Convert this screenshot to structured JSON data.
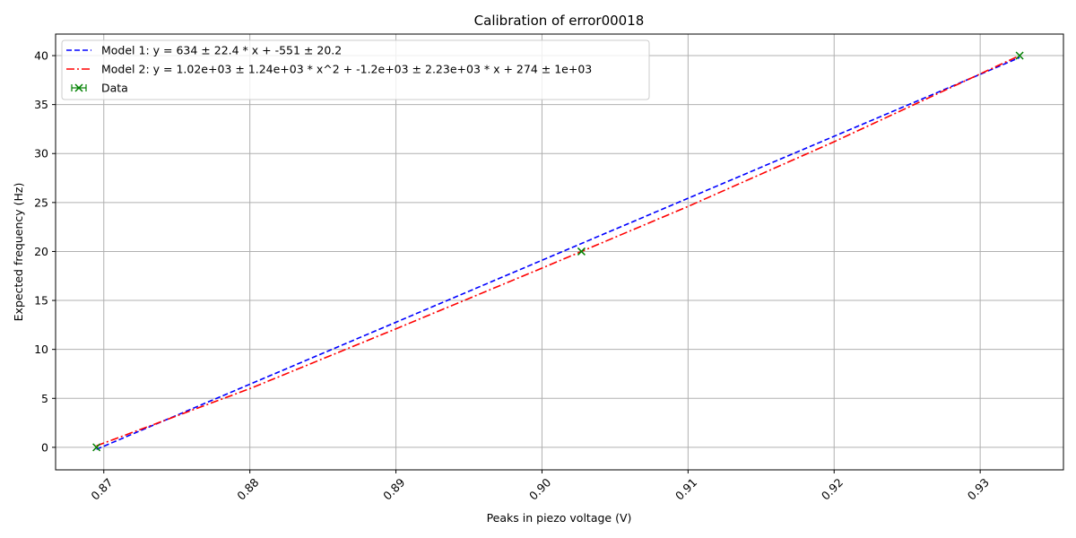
{
  "chart_data": {
    "type": "line",
    "title": "Calibration of error00018",
    "xlabel": "Peaks in piezo voltage (V)",
    "ylabel": "Expected frequency (Hz)",
    "xlim": [
      0.8667,
      0.9357
    ],
    "ylim": [
      -2.3,
      42.2
    ],
    "x_ticks": [
      0.87,
      0.88,
      0.89,
      0.9,
      0.91,
      0.92,
      0.93
    ],
    "x_tick_labels": [
      "0.87",
      "0.88",
      "0.89",
      "0.90",
      "0.91",
      "0.92",
      "0.93"
    ],
    "y_ticks": [
      0,
      5,
      10,
      15,
      20,
      25,
      30,
      35,
      40
    ],
    "y_tick_labels": [
      "0",
      "5",
      "10",
      "15",
      "20",
      "25",
      "30",
      "35",
      "40"
    ],
    "grid": true,
    "legend_position": "top-left",
    "series": [
      {
        "name": "Model 1: y = 634 ± 22.4 * x + -551 ± 20.2",
        "kind": "line",
        "style": "dashed",
        "color": "#0000ff",
        "x": [
          0.8695,
          0.9327
        ],
        "y": [
          -0.2,
          39.8
        ]
      },
      {
        "name": "Model 2: y = 1.02e+03 ± 1.24e+03 * x^2 + -1.2e+03 ± 2.23e+03 * x + 274 ± 1e+03",
        "kind": "line",
        "style": "dashdot",
        "color": "#ff0000",
        "x": [
          0.8695,
          0.88,
          0.89,
          0.9,
          0.91,
          0.92,
          0.9327
        ],
        "y": [
          0.15,
          6.0,
          12.1,
          18.3,
          24.6,
          31.2,
          40.0
        ]
      },
      {
        "name": "Data",
        "kind": "errorbar",
        "marker": "x",
        "color": "#008000",
        "x": [
          0.8695,
          0.9027,
          0.9327
        ],
        "y": [
          0,
          20,
          40
        ]
      }
    ]
  }
}
